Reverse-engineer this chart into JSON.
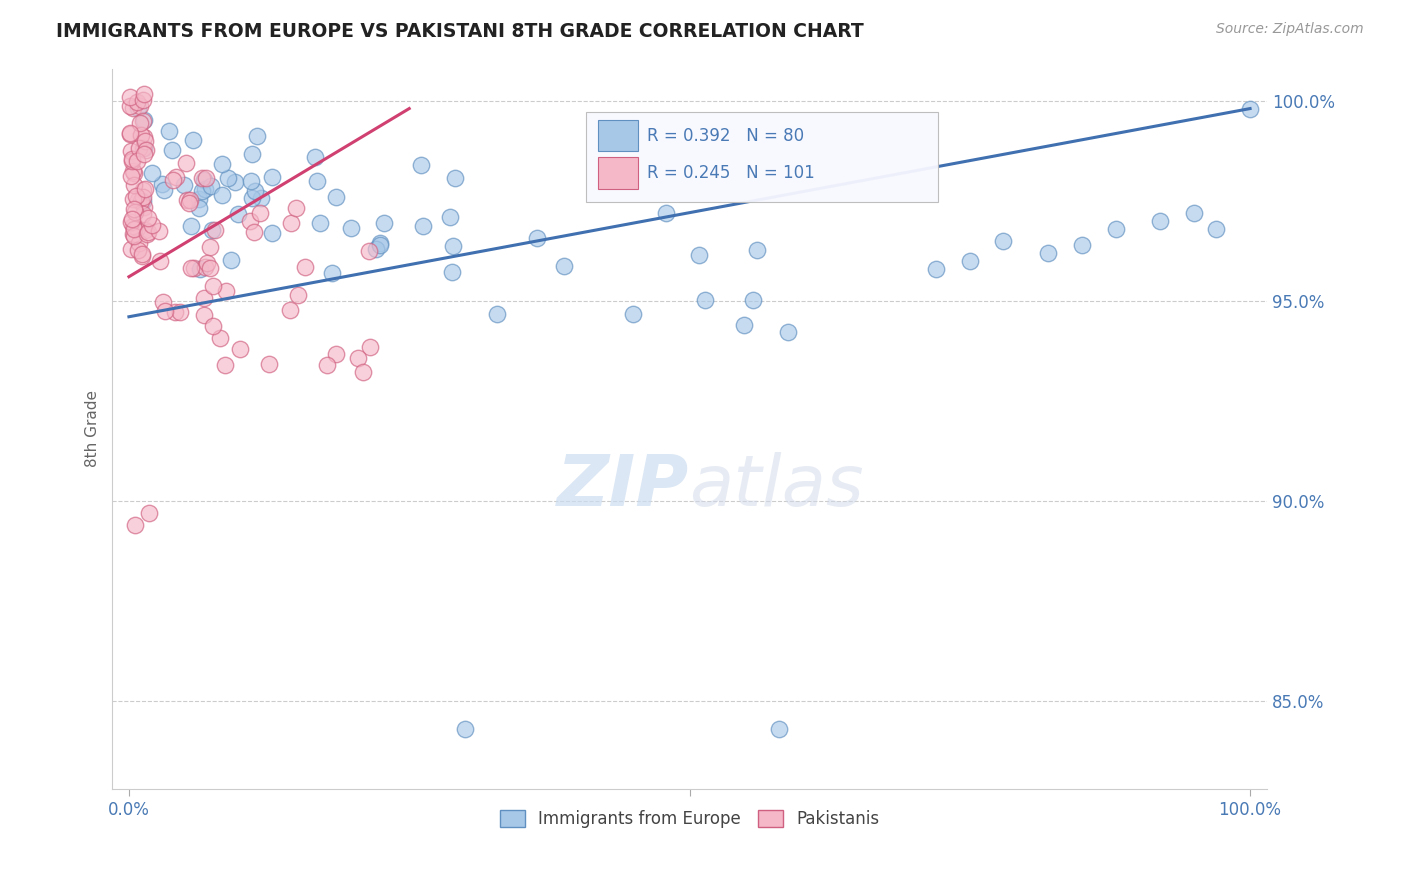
{
  "title": "IMMIGRANTS FROM EUROPE VS PAKISTANI 8TH GRADE CORRELATION CHART",
  "source": "Source: ZipAtlas.com",
  "ylabel": "8th Grade",
  "ymin": 0.828,
  "ymax": 1.008,
  "xmin": -0.015,
  "xmax": 1.015,
  "yticks": [
    0.85,
    0.9,
    0.95,
    1.0
  ],
  "ytick_labels": [
    "85.0%",
    "90.0%",
    "95.0%",
    "100.0%"
  ],
  "xtick_positions": [
    0.0,
    0.5,
    1.0
  ],
  "xtick_labels": [
    "0.0%",
    "",
    "100.0%"
  ],
  "blue_R": 0.392,
  "blue_N": 80,
  "pink_R": 0.245,
  "pink_N": 101,
  "blue_color": "#a8c8e8",
  "pink_color": "#f5b8c8",
  "blue_edge_color": "#6090c0",
  "pink_edge_color": "#d06080",
  "blue_line_color": "#4070b0",
  "pink_line_color": "#d04070",
  "legend_blue_label": "Immigrants from Europe",
  "legend_pink_label": "Pakistanis",
  "blue_trend_x": [
    0.0,
    1.0
  ],
  "blue_trend_y": [
    0.946,
    0.998
  ],
  "pink_trend_x": [
    0.0,
    0.25
  ],
  "pink_trend_y": [
    0.956,
    0.998
  ]
}
